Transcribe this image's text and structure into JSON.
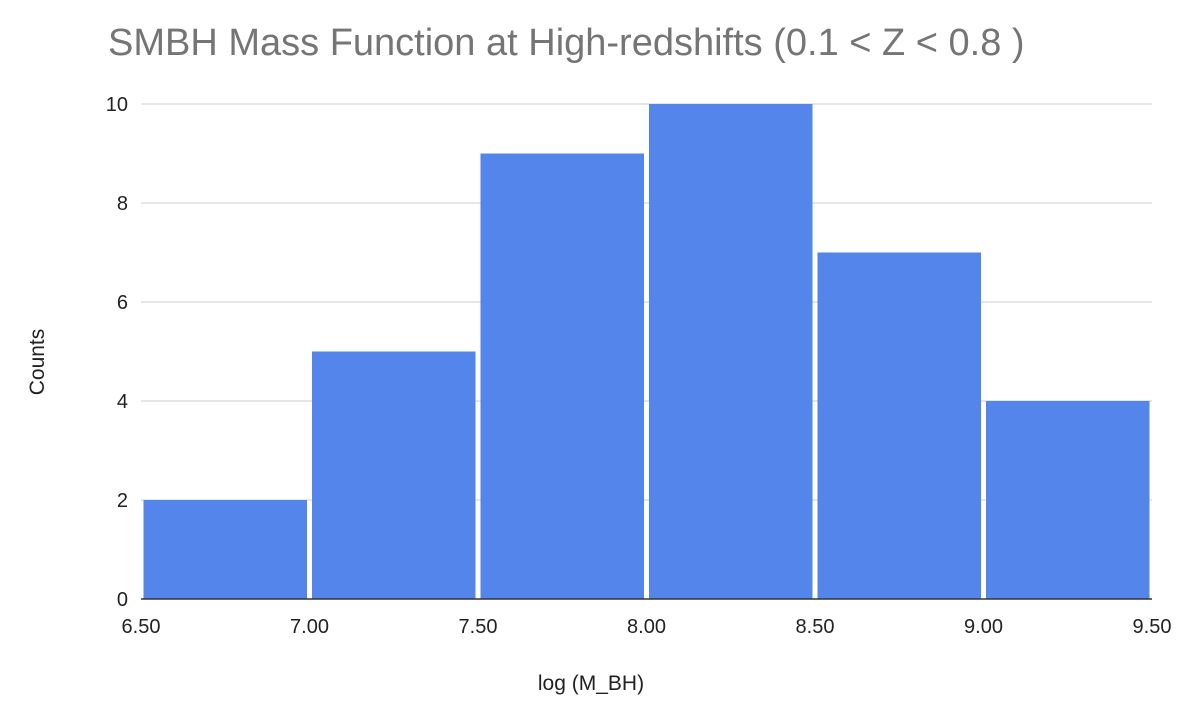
{
  "chart_data": {
    "type": "bar",
    "title": "SMBH Mass Function at High-redshifts (0.1 < Z < 0.8 )",
    "xlabel": "log (M_BH)",
    "ylabel": "Counts",
    "bin_edges": [
      6.5,
      7.0,
      7.5,
      8.0,
      8.5,
      9.0,
      9.5
    ],
    "values": [
      2,
      5,
      9,
      10,
      7,
      4
    ],
    "xlim": [
      6.5,
      9.5
    ],
    "ylim": [
      0,
      10
    ],
    "x_ticks": [
      "6.50",
      "7.00",
      "7.50",
      "8.00",
      "8.50",
      "9.00",
      "9.50"
    ],
    "y_ticks": [
      "0",
      "2",
      "4",
      "6",
      "8",
      "10"
    ],
    "bar_color": "#5385ea",
    "grid": true
  }
}
